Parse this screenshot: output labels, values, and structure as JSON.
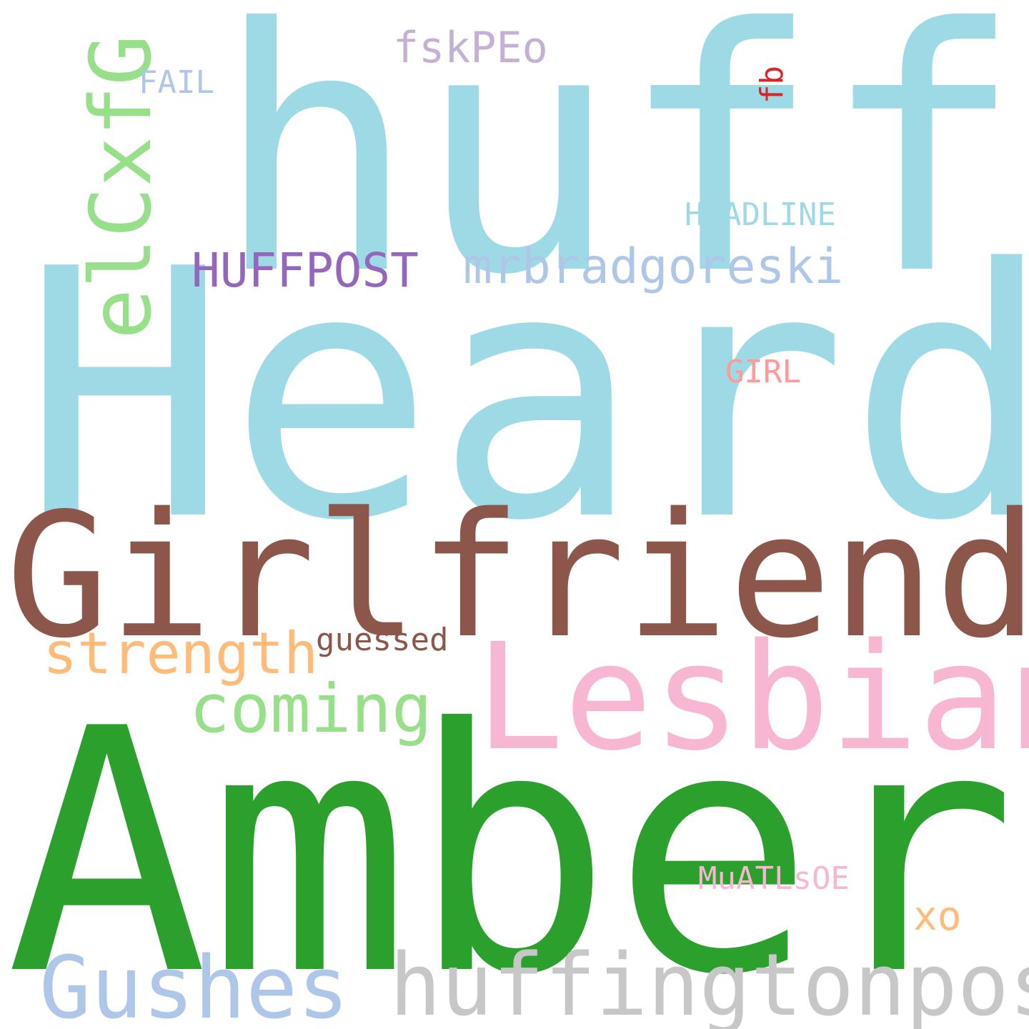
{
  "words": [
    {
      "text": "Heard",
      "color": "#9edae5"
    },
    {
      "text": "huff",
      "color": "#9edae5"
    },
    {
      "text": "Girlfriend",
      "color": "#8c564b"
    },
    {
      "text": "Amber",
      "color": "#2ca02c"
    },
    {
      "text": "Lesbian",
      "color": "#f7b6d2"
    },
    {
      "text": "elCxfG",
      "color": "#98df8a"
    },
    {
      "text": "Gushes",
      "color": "#aec7e8"
    },
    {
      "text": "huffingtonpost",
      "color": "#c7c7c7"
    },
    {
      "text": "coming",
      "color": "#98df8a"
    },
    {
      "text": "strength",
      "color": "#ffbb78"
    },
    {
      "text": "mrbradgoreski",
      "color": "#aec7e8"
    },
    {
      "text": "HUFFPOST",
      "color": "#9467bd"
    },
    {
      "text": "fskPEo",
      "color": "#c5b0d5"
    },
    {
      "text": "HEADLINE",
      "color": "#9edae5"
    },
    {
      "text": "FAIL",
      "color": "#aec7e8"
    },
    {
      "text": "GIRL",
      "color": "#ff9896"
    },
    {
      "text": "guessed",
      "color": "#8c564b"
    },
    {
      "text": "MuATLsOE",
      "color": "#f7b6d2"
    },
    {
      "text": "xo",
      "color": "#ffbb78"
    },
    {
      "text": "fb",
      "color": "#d62728"
    }
  ]
}
